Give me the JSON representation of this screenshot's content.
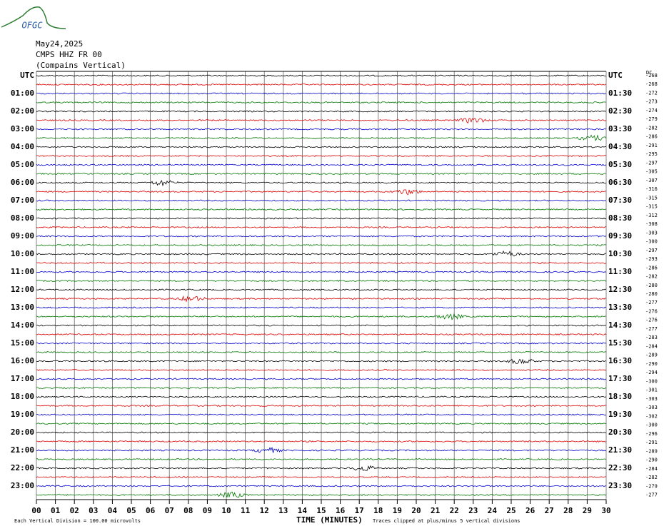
{
  "logo": "OFGC",
  "header": {
    "date": "May24,2025",
    "station": "CMPS HHZ FR 00",
    "location": "(Compains Vertical)"
  },
  "left_labels": [
    "UTC",
    "01:00",
    "02:00",
    "03:00",
    "04:00",
    "05:00",
    "06:00",
    "07:00",
    "08:00",
    "09:00",
    "10:00",
    "11:00",
    "12:00",
    "13:00",
    "14:00",
    "15:00",
    "16:00",
    "17:00",
    "18:00",
    "19:00",
    "20:00",
    "21:00",
    "22:00",
    "23:00"
  ],
  "right_labels": [
    "UTC",
    "01:30",
    "02:30",
    "03:30",
    "04:30",
    "05:30",
    "06:30",
    "07:30",
    "08:30",
    "09:30",
    "10:30",
    "11:30",
    "12:30",
    "13:30",
    "14:30",
    "15:30",
    "16:30",
    "17:30",
    "18:30",
    "19:30",
    "20:30",
    "21:30",
    "22:30",
    "23:30"
  ],
  "dc_label": "DC",
  "dc_values": [
    "-268",
    "-268",
    "-272",
    "-273",
    "-274",
    "-279",
    "-282",
    "-286",
    "-291",
    "-295",
    "-297",
    "-305",
    "-307",
    "-316",
    "-315",
    "-315",
    "-312",
    "-308",
    "-303",
    "-300",
    "-297",
    "-293",
    "-286",
    "-282",
    "-280",
    "-280",
    "-277",
    "-276",
    "-276",
    "-277",
    "-283",
    "-284",
    "-289",
    "-290",
    "-294",
    "-300",
    "-301",
    "-303",
    "-303",
    "-302",
    "-300",
    "-296",
    "-291",
    "-289",
    "-290",
    "-284",
    "-282",
    "-279",
    "-277"
  ],
  "x_labels": [
    "00",
    "01",
    "02",
    "03",
    "04",
    "05",
    "06",
    "07",
    "08",
    "09",
    "10",
    "11",
    "12",
    "13",
    "14",
    "15",
    "16",
    "17",
    "18",
    "19",
    "20",
    "21",
    "22",
    "23",
    "24",
    "25",
    "26",
    "27",
    "28",
    "29",
    "30"
  ],
  "x_title": "TIME (MINUTES)",
  "footer": {
    "division": "Each Vertical Division =  100.00 microvolts",
    "clip": "Traces clipped at plus/minus 5 vertical divisions"
  }
}
